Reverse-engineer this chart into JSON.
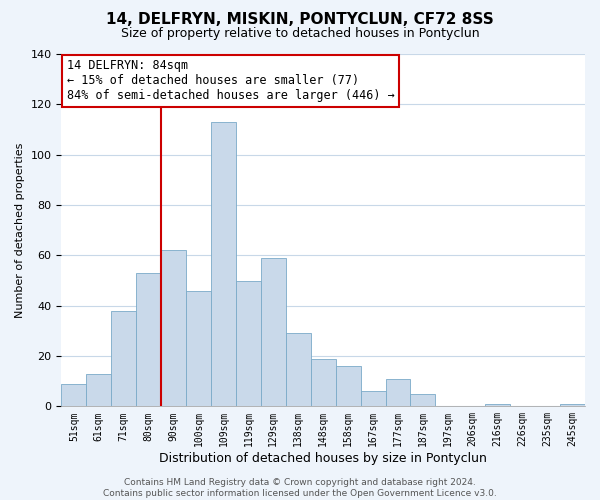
{
  "title": "14, DELFRYN, MISKIN, PONTYCLUN, CF72 8SS",
  "subtitle": "Size of property relative to detached houses in Pontyclun",
  "xlabel": "Distribution of detached houses by size in Pontyclun",
  "ylabel": "Number of detached properties",
  "categories": [
    "51sqm",
    "61sqm",
    "71sqm",
    "80sqm",
    "90sqm",
    "100sqm",
    "109sqm",
    "119sqm",
    "129sqm",
    "138sqm",
    "148sqm",
    "158sqm",
    "167sqm",
    "177sqm",
    "187sqm",
    "197sqm",
    "206sqm",
    "216sqm",
    "226sqm",
    "235sqm",
    "245sqm"
  ],
  "values": [
    9,
    13,
    38,
    53,
    62,
    46,
    113,
    50,
    59,
    29,
    19,
    16,
    6,
    11,
    5,
    0,
    0,
    1,
    0,
    0,
    1
  ],
  "bar_color": "#c9d9ea",
  "bar_edge_color": "#7aaac8",
  "vline_x_index": 3.5,
  "vline_color": "#cc0000",
  "annotation_line1": "14 DELFRYN: 84sqm",
  "annotation_line2": "← 15% of detached houses are smaller (77)",
  "annotation_line3": "84% of semi-detached houses are larger (446) →",
  "annotation_box_color": "white",
  "annotation_box_edge_color": "#cc0000",
  "ylim": [
    0,
    140
  ],
  "yticks": [
    0,
    20,
    40,
    60,
    80,
    100,
    120,
    140
  ],
  "footer_line1": "Contains HM Land Registry data © Crown copyright and database right 2024.",
  "footer_line2": "Contains public sector information licensed under the Open Government Licence v3.0.",
  "background_color": "#eef4fb",
  "plot_background_color": "#ffffff",
  "grid_color": "#c8d8e8",
  "title_fontsize": 11,
  "subtitle_fontsize": 9,
  "xlabel_fontsize": 9,
  "ylabel_fontsize": 8,
  "annotation_fontsize": 8.5,
  "footer_fontsize": 6.5
}
